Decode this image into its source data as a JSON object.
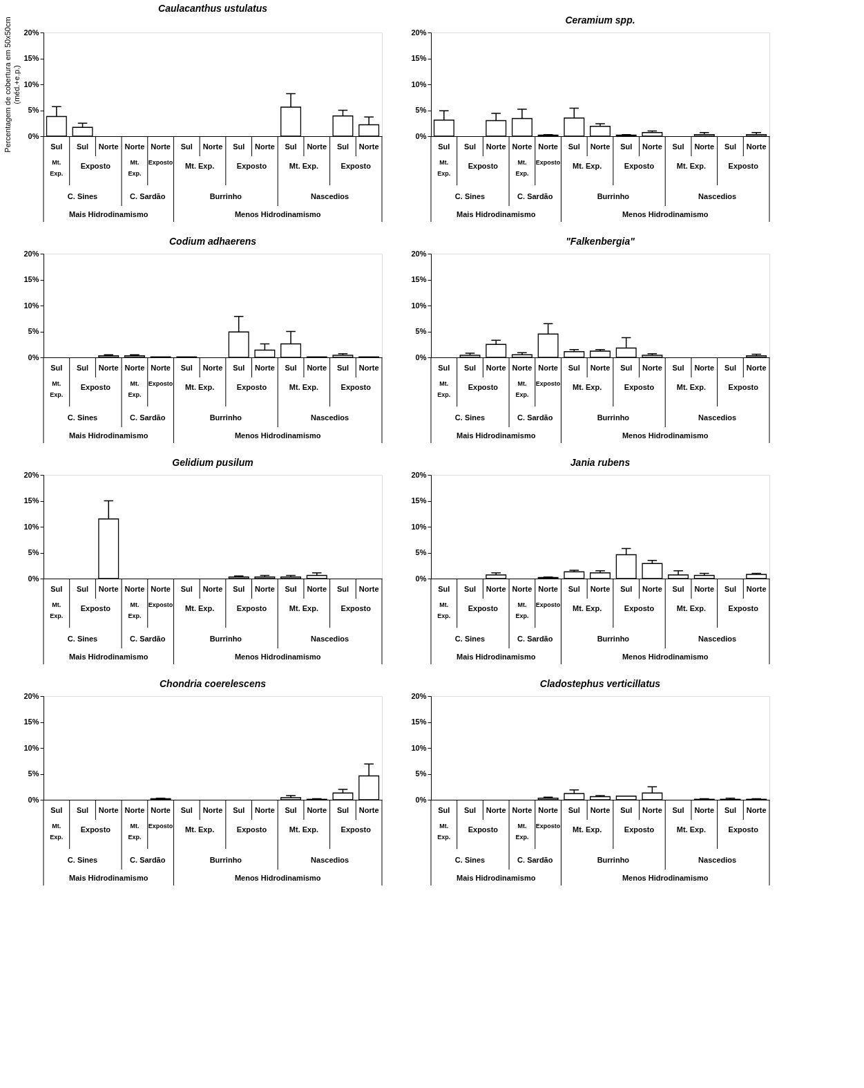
{
  "chart_data": [
    {
      "type": "bar",
      "title": "Caulacanthus ustulatus",
      "ylabel": "Percentagem de cobertura em 50x50cm\n(méd.+e.p.)",
      "categories": [
        "Sul",
        "Sul",
        "Norte",
        "Norte",
        "Norte",
        "Sul",
        "Norte",
        "Sul",
        "Norte",
        "Sul",
        "Norte",
        "Sul",
        "Norte"
      ],
      "ylim": [
        0,
        20
      ],
      "yticks": [
        {
          "value": 0,
          "label": "0%"
        },
        {
          "value": 5,
          "label": "5%"
        },
        {
          "value": 10,
          "label": "10%"
        },
        {
          "value": 15,
          "label": "15%"
        },
        {
          "value": 20,
          "label": "20%"
        }
      ],
      "series": [
        {
          "color": "#ffffff",
          "values": [
            3.8,
            1.7,
            0,
            0,
            0,
            0,
            0,
            0,
            0,
            5.6,
            0,
            3.9,
            2.2
          ],
          "errors": [
            [
              3.8,
              5.7
            ],
            [
              1.7,
              2.5
            ],
            null,
            null,
            null,
            null,
            null,
            null,
            null,
            [
              5.6,
              8.2
            ],
            null,
            [
              3.9,
              5.0
            ],
            [
              2.2,
              3.7
            ]
          ]
        }
      ],
      "annotations": [
        "Mt. Exp.",
        "Exposto",
        "Mt. Exp.",
        "Exposto",
        "Mt. Exp.",
        "Exposto",
        "Mt. Exp.",
        "Exposto",
        "C. Sines",
        "C. Sardão",
        "Burrinho",
        "Nascedios",
        "Mais Hidrodinamismo",
        "Menos Hidrodinamismo"
      ]
    },
    {
      "type": "bar",
      "title": "Ceramium spp.",
      "categories": [
        "Sul",
        "Sul",
        "Norte",
        "Norte",
        "Norte",
        "Sul",
        "Norte",
        "Sul",
        "Norte",
        "Sul",
        "Norte",
        "Sul",
        "Norte"
      ],
      "ylim": [
        0,
        20
      ],
      "yticks": [
        {
          "value": 0,
          "label": "0%"
        },
        {
          "value": 5,
          "label": "5%"
        },
        {
          "value": 10,
          "label": "10%"
        },
        {
          "value": 15,
          "label": "15%"
        },
        {
          "value": 20,
          "label": "20%"
        }
      ],
      "series": [
        {
          "color": "#ffffff",
          "values": [
            3.1,
            0,
            3.0,
            3.4,
            0.2,
            3.5,
            1.9,
            0.2,
            0.7,
            0,
            0.3,
            0,
            0.3
          ],
          "errors": [
            [
              3.1,
              4.9
            ],
            null,
            [
              3.0,
              4.4
            ],
            [
              3.4,
              5.2
            ],
            [
              0.2,
              0.3
            ],
            [
              3.5,
              5.4
            ],
            [
              1.9,
              2.4
            ],
            [
              0.2,
              0.3
            ],
            [
              0.7,
              1.0
            ],
            null,
            [
              0.3,
              0.7
            ],
            null,
            [
              0.3,
              0.7
            ]
          ]
        }
      ],
      "annotations": [
        "Mt. Exp.",
        "Exposto",
        "Mt. Exp.",
        "Exposto",
        "Mt. Exp.",
        "Exposto",
        "Mt. Exp.",
        "Exposto",
        "C. Sines",
        "C. Sardão",
        "Burrinho",
        "Nascedios",
        "Mais Hidrodinamismo",
        "Menos Hidrodinamismo"
      ]
    },
    {
      "type": "bar",
      "title": "Codium adhaerens",
      "categories": [
        "Sul",
        "Sul",
        "Norte",
        "Norte",
        "Norte",
        "Sul",
        "Norte",
        "Sul",
        "Norte",
        "Sul",
        "Norte",
        "Sul",
        "Norte"
      ],
      "ylim": [
        0,
        20
      ],
      "yticks": [
        {
          "value": 0,
          "label": "0%"
        },
        {
          "value": 5,
          "label": "5%"
        },
        {
          "value": 10,
          "label": "10%"
        },
        {
          "value": 15,
          "label": "15%"
        },
        {
          "value": 20,
          "label": "20%"
        }
      ],
      "series": [
        {
          "color": "#ffffff",
          "values": [
            0,
            0,
            0.3,
            0.3,
            0.1,
            0.1,
            0,
            4.9,
            1.4,
            2.6,
            0.1,
            0.4,
            0.1
          ],
          "errors": [
            null,
            null,
            [
              0.3,
              0.5
            ],
            [
              0.3,
              0.5
            ],
            null,
            null,
            null,
            [
              4.9,
              7.9
            ],
            [
              1.4,
              2.6
            ],
            [
              2.6,
              5.0
            ],
            null,
            [
              0.4,
              0.7
            ],
            null
          ]
        }
      ],
      "annotations": [
        "Mt. Exp.",
        "Exposto",
        "Mt. Exp.",
        "Exposto",
        "Mt. Exp.",
        "Exposto",
        "Mt. Exp.",
        "Exposto",
        "C. Sines",
        "C. Sardão",
        "Burrinho",
        "Nascedios",
        "Mais Hidrodinamismo",
        "Menos Hidrodinamismo"
      ]
    },
    {
      "type": "bar",
      "title": "\"Falkenbergia\"",
      "categories": [
        "Sul",
        "Sul",
        "Norte",
        "Norte",
        "Norte",
        "Sul",
        "Norte",
        "Sul",
        "Norte",
        "Sul",
        "Norte",
        "Sul",
        "Norte"
      ],
      "ylim": [
        0,
        20
      ],
      "yticks": [
        {
          "value": 0,
          "label": "0%"
        },
        {
          "value": 5,
          "label": "5%"
        },
        {
          "value": 10,
          "label": "10%"
        },
        {
          "value": 15,
          "label": "15%"
        },
        {
          "value": 20,
          "label": "20%"
        }
      ],
      "series": [
        {
          "color": "#ffffff",
          "values": [
            0,
            0.4,
            2.5,
            0.5,
            4.5,
            1.1,
            1.2,
            1.8,
            0.4,
            0,
            0,
            0,
            0.3
          ],
          "errors": [
            null,
            [
              0.4,
              0.8
            ],
            [
              2.5,
              3.3
            ],
            [
              0.5,
              0.9
            ],
            [
              4.5,
              6.5
            ],
            [
              1.1,
              1.5
            ],
            [
              1.2,
              1.5
            ],
            [
              1.8,
              3.8
            ],
            [
              0.4,
              0.7
            ],
            null,
            null,
            null,
            [
              0.3,
              0.6
            ]
          ]
        }
      ],
      "annotations": [
        "Mt. Exp.",
        "Exposto",
        "Mt. Exp.",
        "Exposto",
        "Mt. Exp.",
        "Exposto",
        "Mt. Exp.",
        "Exposto",
        "C. Sines",
        "C. Sardão",
        "Burrinho",
        "Nascedios",
        "Mais Hidrodinamismo",
        "Menos Hidrodinamismo"
      ]
    },
    {
      "type": "bar",
      "title": "Gelidium pusilum",
      "categories": [
        "Sul",
        "Sul",
        "Norte",
        "Norte",
        "Norte",
        "Sul",
        "Norte",
        "Sul",
        "Norte",
        "Sul",
        "Norte",
        "Sul",
        "Norte"
      ],
      "ylim": [
        0,
        20
      ],
      "yticks": [
        {
          "value": 0,
          "label": "0%"
        },
        {
          "value": 5,
          "label": "5%"
        },
        {
          "value": 10,
          "label": "10%"
        },
        {
          "value": 15,
          "label": "15%"
        },
        {
          "value": 20,
          "label": "20%"
        }
      ],
      "series": [
        {
          "color": "#ffffff",
          "values": [
            0,
            0,
            11.5,
            0,
            0,
            0,
            0,
            0.3,
            0.3,
            0.3,
            0.6,
            0,
            0
          ],
          "errors": [
            null,
            null,
            [
              11.5,
              15.0
            ],
            null,
            null,
            null,
            null,
            [
              0.3,
              0.5
            ],
            [
              0.3,
              0.6
            ],
            [
              0.3,
              0.6
            ],
            [
              0.6,
              1.1
            ],
            null,
            null
          ]
        }
      ],
      "annotations": [
        "Mt. Exp.",
        "Exposto",
        "Mt. Exp.",
        "Exposto",
        "Mt. Exp.",
        "Exposto",
        "Mt. Exp.",
        "Exposto",
        "C. Sines",
        "C. Sardão",
        "Burrinho",
        "Nascedios",
        "Mais Hidrodinamismo",
        "Menos Hidrodinamismo"
      ]
    },
    {
      "type": "bar",
      "title": "Jania rubens",
      "categories": [
        "Sul",
        "Sul",
        "Norte",
        "Norte",
        "Norte",
        "Sul",
        "Norte",
        "Sul",
        "Norte",
        "Sul",
        "Norte",
        "Sul",
        "Norte"
      ],
      "ylim": [
        0,
        20
      ],
      "yticks": [
        {
          "value": 0,
          "label": "0%"
        },
        {
          "value": 5,
          "label": "5%"
        },
        {
          "value": 10,
          "label": "10%"
        },
        {
          "value": 15,
          "label": "15%"
        },
        {
          "value": 20,
          "label": "20%"
        }
      ],
      "series": [
        {
          "color": "#ffffff",
          "values": [
            0,
            0,
            0.7,
            0,
            0.2,
            1.3,
            1.1,
            4.6,
            2.9,
            0.7,
            0.6,
            0,
            0.8
          ],
          "errors": [
            null,
            null,
            [
              0.7,
              1.1
            ],
            null,
            [
              0.2,
              0.3
            ],
            [
              1.3,
              1.6
            ],
            [
              1.1,
              1.5
            ],
            [
              4.6,
              5.8
            ],
            [
              2.9,
              3.5
            ],
            [
              0.7,
              1.5
            ],
            [
              0.6,
              1.0
            ],
            null,
            [
              0.8,
              1.0
            ]
          ]
        }
      ],
      "annotations": [
        "Mt. Exp.",
        "Exposto",
        "Mt. Exp.",
        "Exposto",
        "Mt. Exp.",
        "Exposto",
        "Mt. Exp.",
        "Exposto",
        "C. Sines",
        "C. Sardão",
        "Burrinho",
        "Nascedios",
        "Mais Hidrodinamismo",
        "Menos Hidrodinamismo"
      ]
    },
    {
      "type": "bar",
      "title": "Chondria coerelescens",
      "categories": [
        "Sul",
        "Sul",
        "Norte",
        "Norte",
        "Norte",
        "Sul",
        "Norte",
        "Sul",
        "Norte",
        "Sul",
        "Norte",
        "Sul",
        "Norte"
      ],
      "ylim": [
        0,
        20
      ],
      "yticks": [
        {
          "value": 0,
          "label": "0%"
        },
        {
          "value": 5,
          "label": "5%"
        },
        {
          "value": 10,
          "label": "10%"
        },
        {
          "value": 15,
          "label": "15%"
        },
        {
          "value": 20,
          "label": "20%"
        }
      ],
      "series": [
        {
          "color": "#ffffff",
          "values": [
            0,
            0,
            0,
            0,
            0.2,
            0,
            0,
            0,
            0,
            0.4,
            0.1,
            1.3,
            4.6
          ],
          "errors": [
            null,
            null,
            null,
            null,
            [
              0.2,
              0.3
            ],
            null,
            null,
            null,
            null,
            [
              0.4,
              0.8
            ],
            [
              0.1,
              0.2
            ],
            [
              1.3,
              2.0
            ],
            [
              4.6,
              6.9
            ]
          ]
        }
      ],
      "annotations": [
        "Mt. Exp.",
        "Exposto",
        "Mt. Exp.",
        "Exposto",
        "Mt. Exp.",
        "Exposto",
        "Mt. Exp.",
        "Exposto",
        "C. Sines",
        "C. Sardão",
        "Burrinho",
        "Nascedios",
        "Mais Hidrodinamismo",
        "Menos Hidrodinamismo"
      ]
    },
    {
      "type": "bar",
      "title": "Cladostephus verticillatus",
      "categories": [
        "Sul",
        "Sul",
        "Norte",
        "Norte",
        "Norte",
        "Sul",
        "Norte",
        "Sul",
        "Norte",
        "Sul",
        "Norte",
        "Sul",
        "Norte"
      ],
      "ylim": [
        0,
        20
      ],
      "yticks": [
        {
          "value": 0,
          "label": "0%"
        },
        {
          "value": 5,
          "label": "5%"
        },
        {
          "value": 10,
          "label": "10%"
        },
        {
          "value": 15,
          "label": "15%"
        },
        {
          "value": 20,
          "label": "20%"
        }
      ],
      "series": [
        {
          "color": "#ffffff",
          "values": [
            0,
            0,
            0,
            0,
            0.3,
            1.2,
            0.6,
            0.7,
            1.3,
            0,
            0.1,
            0.1,
            0.1
          ],
          "errors": [
            null,
            null,
            null,
            null,
            [
              0.3,
              0.5
            ],
            [
              1.2,
              1.9
            ],
            [
              0.6,
              0.8
            ],
            null,
            [
              1.3,
              2.5
            ],
            null,
            [
              0.1,
              0.2
            ],
            [
              0.1,
              0.3
            ],
            [
              0.1,
              0.2
            ]
          ]
        }
      ],
      "annotations": [
        "Mt. Exp.",
        "Exposto",
        "Mt. Exp.",
        "Exposto",
        "Mt. Exp.",
        "Exposto",
        "Mt. Exp.",
        "Exposto",
        "C. Sines",
        "C. Sardão",
        "Burrinho",
        "Nascedios",
        "Mais Hidrodinamismo",
        "Menos Hidrodinamismo"
      ]
    }
  ]
}
